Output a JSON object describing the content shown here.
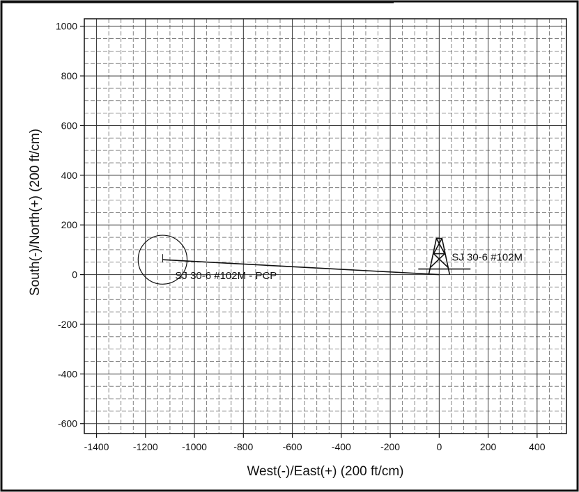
{
  "chart_data": {
    "type": "scatter",
    "xlabel": "West(-)/East(+) (200 ft/cm)",
    "ylabel": "South(-)/North(+) (200 ft/cm)",
    "xlim": [
      -1450,
      520
    ],
    "ylim": [
      -640,
      1030
    ],
    "x_ticks": [
      -1400,
      -1200,
      -1000,
      -800,
      -600,
      -400,
      -200,
      0,
      200,
      400
    ],
    "y_ticks": [
      1000,
      800,
      600,
      400,
      200,
      0,
      -200,
      -400,
      -600
    ],
    "grid": true,
    "minor_grid": true,
    "wellbore_path": {
      "x": [
        0,
        -1130
      ],
      "y": [
        0,
        60
      ]
    },
    "surface_well": {
      "label": "SJ 30-6 #102M",
      "x": 0,
      "y": 0,
      "symbol": "derrick"
    },
    "target": {
      "label": "SJ 30-6 #102M - PCP",
      "x": -1130,
      "y": 60,
      "radius": 100,
      "symbol": "circle"
    }
  }
}
